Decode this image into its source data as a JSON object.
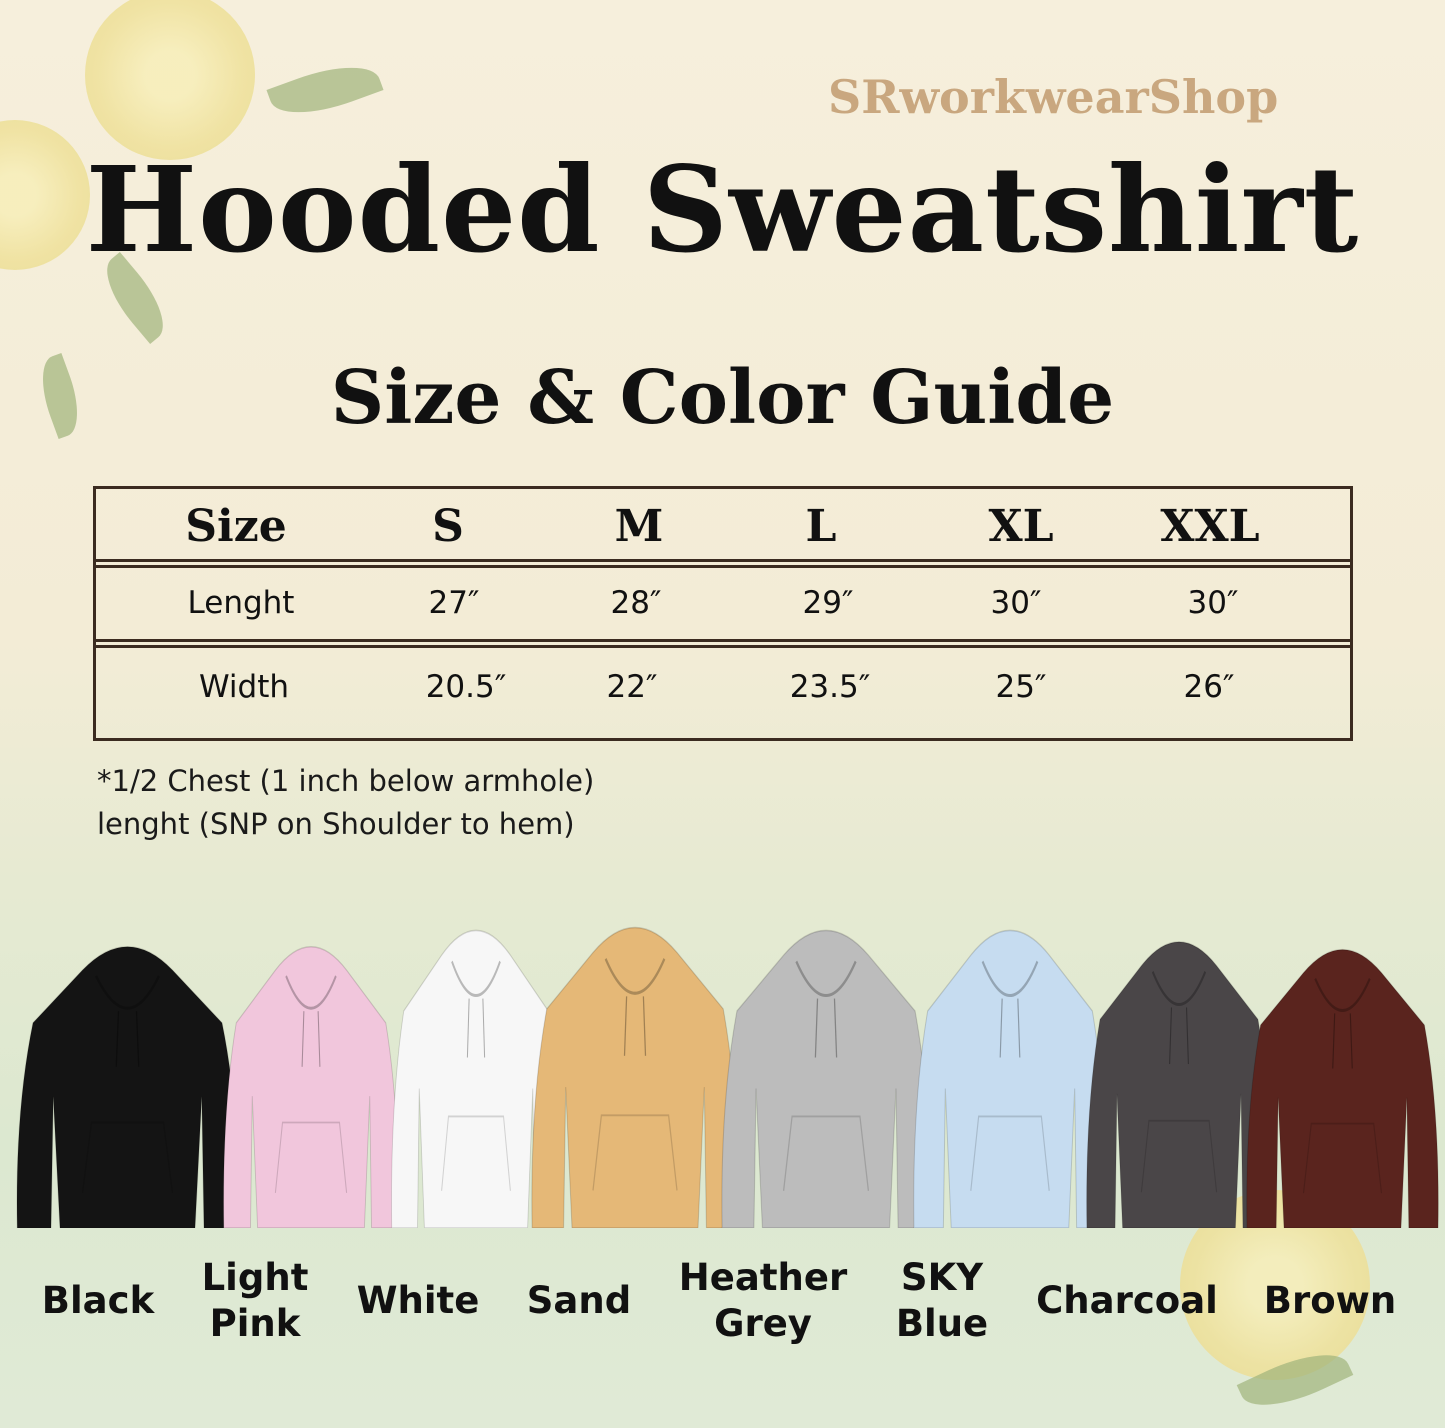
{
  "brand": "SRworkwearShop",
  "title": "Hooded Sweatshirt",
  "subtitle": "Size & Color Guide",
  "table": {
    "headers": [
      "Size",
      "S",
      "M",
      "L",
      "XL",
      "XXL"
    ],
    "rows": [
      [
        "Lenght",
        "27″",
        "28″",
        "29″",
        "30″",
        "30″"
      ],
      [
        "Width",
        "20.5″",
        "22″",
        "23.5″",
        "25″",
        "26″"
      ]
    ]
  },
  "notes": [
    "*1/2 Chest (1 inch below armhole)",
    "lenght (SNP on Shoulder to hem)"
  ],
  "colors": [
    {
      "line1": "Black",
      "line2": "",
      "hex": "#141414"
    },
    {
      "line1": "Light",
      "line2": "Pink",
      "hex": "#f1c6dc"
    },
    {
      "line1": "White",
      "line2": "",
      "hex": "#f7f7f7"
    },
    {
      "line1": "Sand",
      "line2": "",
      "hex": "#e5b877"
    },
    {
      "line1": "Heather",
      "line2": "Grey",
      "hex": "#bcbcbc"
    },
    {
      "line1": "SKY",
      "line2": "Blue",
      "hex": "#c6dcf0"
    },
    {
      "line1": "Charcoal",
      "line2": "",
      "hex": "#4a4648"
    },
    {
      "line1": "Brown",
      "line2": "",
      "hex": "#5a241e"
    }
  ]
}
